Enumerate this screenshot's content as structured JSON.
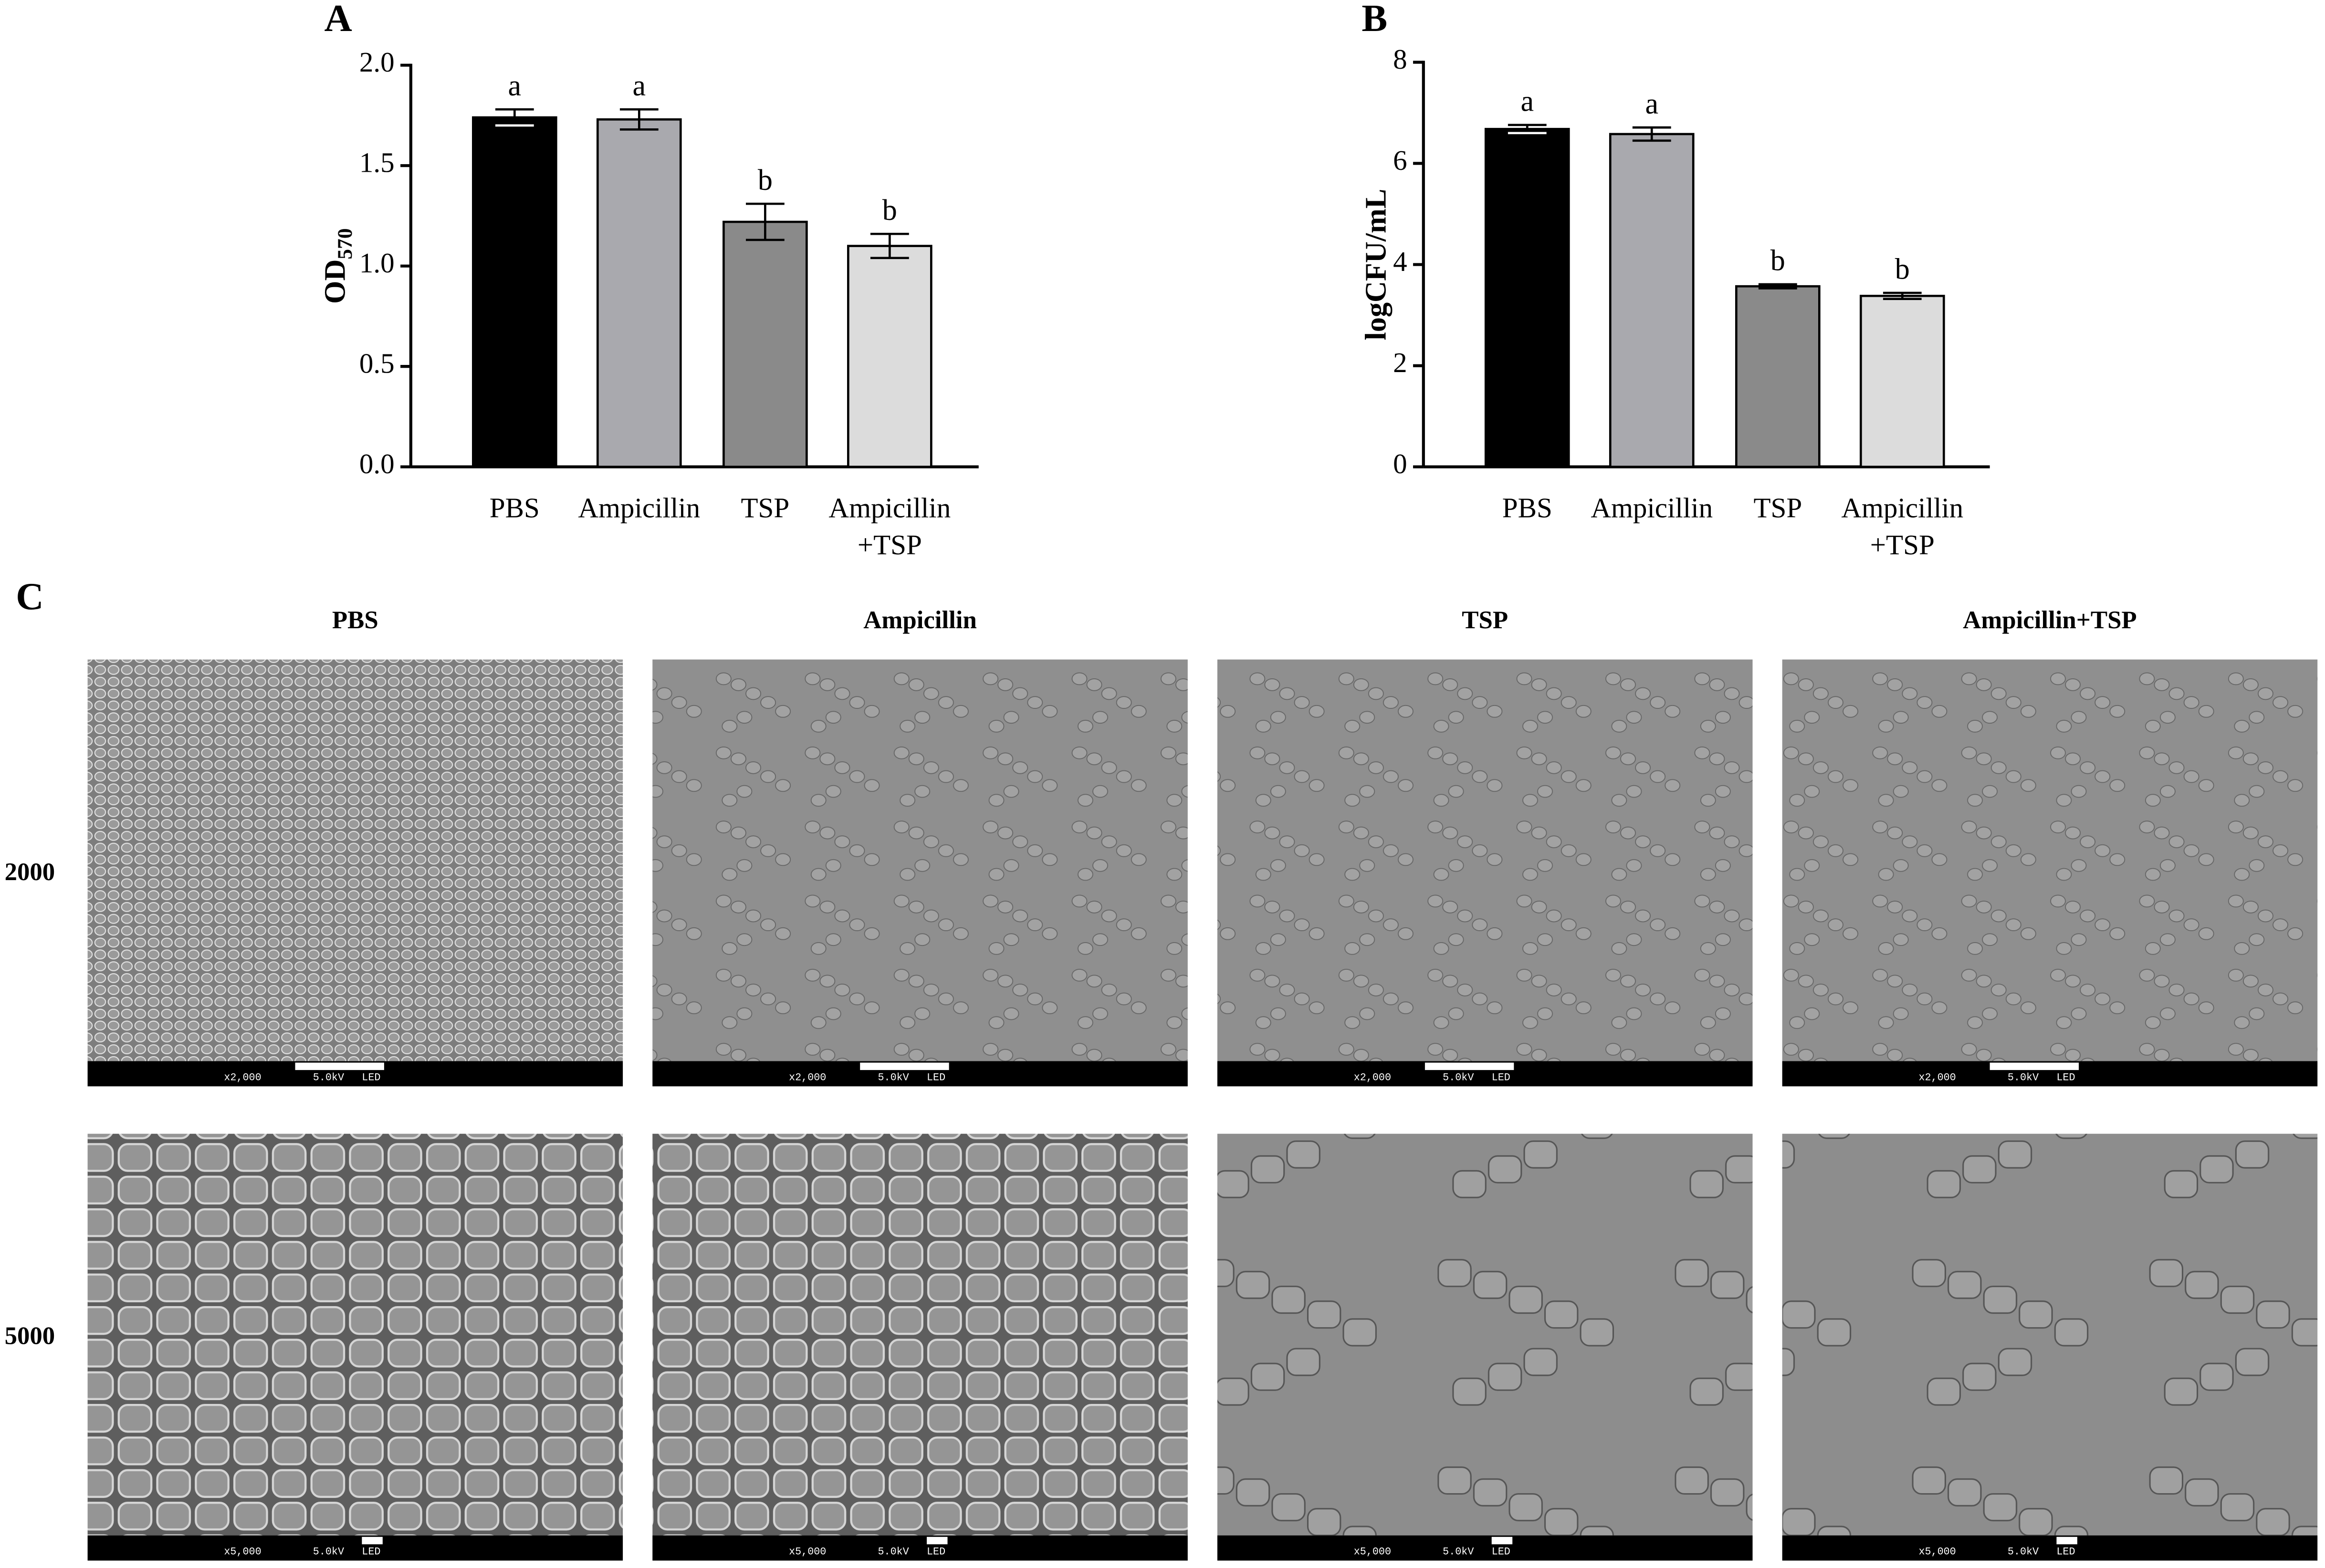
{
  "chart_data": [
    {
      "type": "bar",
      "panel": "A",
      "y_label": "OD",
      "y_label_subscript": "570",
      "categories": [
        "PBS",
        "Ampicillin",
        "TSP",
        "Ampicillin\n+TSP"
      ],
      "values": [
        1.74,
        1.73,
        1.22,
        1.1
      ],
      "errors": [
        0.04,
        0.05,
        0.09,
        0.06
      ],
      "annotations": [
        "a",
        "a",
        "b",
        "b"
      ],
      "colors": [
        "#000000",
        "#a9a9ae",
        "#8a8a8a",
        "#dcdcdc"
      ],
      "ylim": [
        0,
        2
      ],
      "yticks": [
        {
          "value": 0,
          "label": "0.0"
        },
        {
          "value": 0.5,
          "label": "0.5"
        },
        {
          "value": 1,
          "label": "1.0"
        },
        {
          "value": 1.5,
          "label": "1.5"
        },
        {
          "value": 2,
          "label": "2.0"
        }
      ]
    },
    {
      "type": "bar",
      "panel": "B",
      "y_label": "logCFU/mL",
      "categories": [
        "PBS",
        "Ampicillin",
        "TSP",
        "Ampicillin\n+TSP"
      ],
      "values": [
        6.68,
        6.58,
        3.57,
        3.38
      ],
      "errors": [
        0.08,
        0.13,
        0.04,
        0.06
      ],
      "annotations": [
        "a",
        "a",
        "b",
        "b"
      ],
      "colors": [
        "#000000",
        "#a9a9ae",
        "#8a8a8a",
        "#dcdcdc"
      ],
      "ylim": [
        0,
        8
      ],
      "yticks": [
        0,
        2,
        4,
        6,
        8
      ]
    }
  ],
  "panel_c": {
    "label": "C",
    "columns": [
      "PBS",
      "Ampicillin",
      "TSP",
      "Ampicillin+TSP"
    ],
    "rows": [
      "2000",
      "5000"
    ],
    "scale_bar": {
      "magnifications": [
        "x2,000",
        "x5,000"
      ],
      "voltage": "5.0kV",
      "detector": "LED"
    }
  }
}
